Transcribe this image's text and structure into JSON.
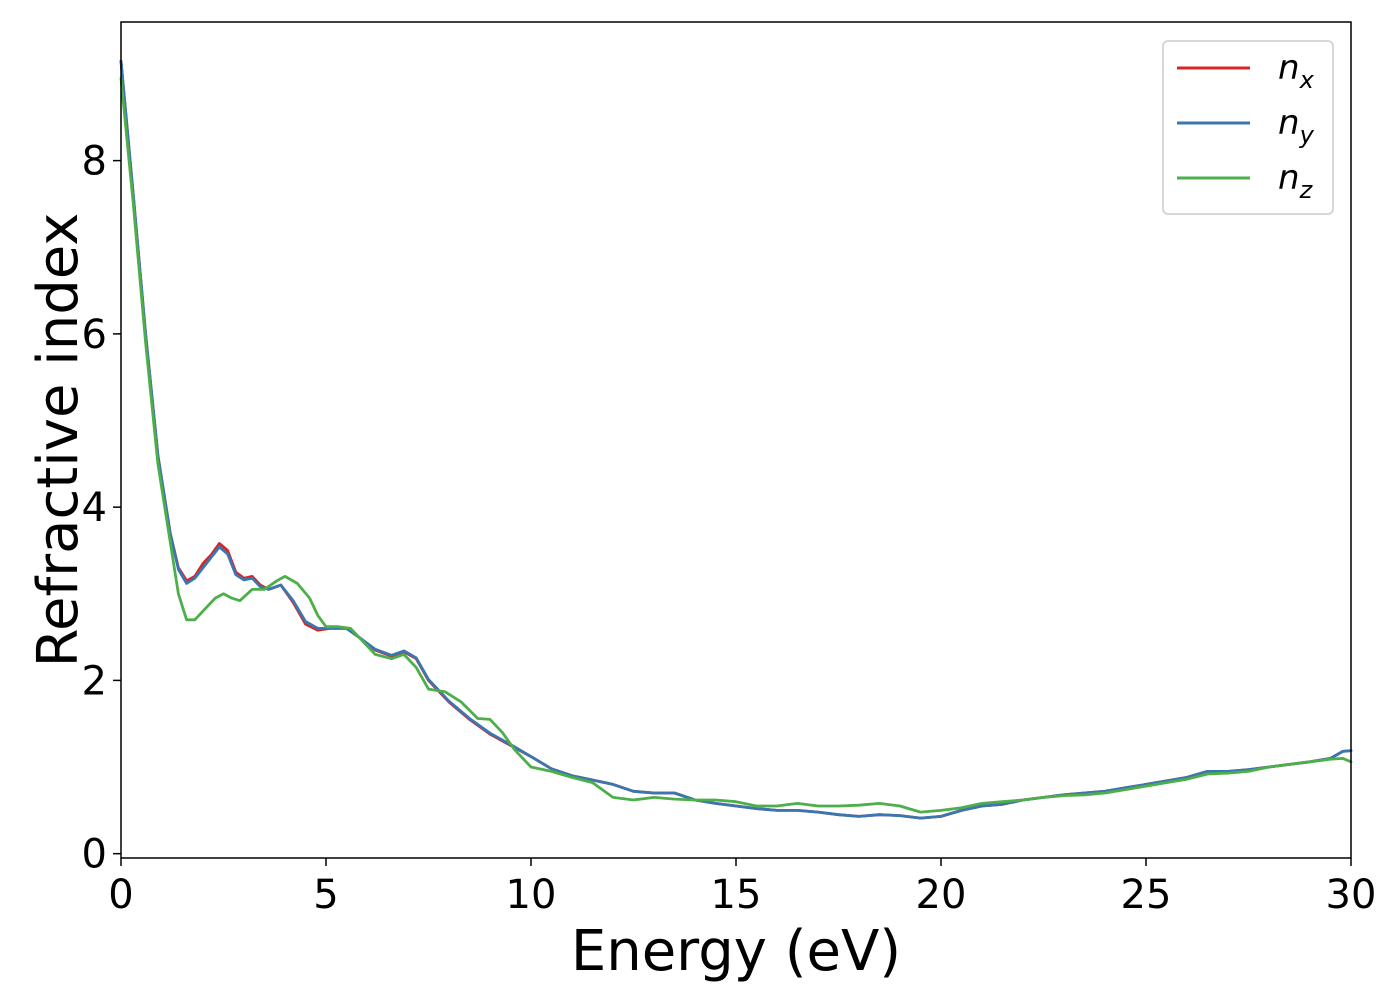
{
  "chart_data": {
    "type": "line",
    "title": "",
    "xlabel": "Energy (eV)",
    "ylabel": "Refractive index",
    "xlim": [
      0,
      30
    ],
    "ylim": [
      -0.05,
      9.6
    ],
    "xticks": [
      0,
      5,
      10,
      15,
      20,
      25,
      30
    ],
    "yticks": [
      0,
      2,
      4,
      6,
      8
    ],
    "grid": false,
    "legend_position": "top-right",
    "series": [
      {
        "name": "n_x",
        "label_base": "n",
        "label_sub": "x",
        "color": "#d62728",
        "points": [
          [
            0,
            9.15
          ],
          [
            0.3,
            7.6
          ],
          [
            0.6,
            6.0
          ],
          [
            0.9,
            4.6
          ],
          [
            1.2,
            3.7
          ],
          [
            1.4,
            3.3
          ],
          [
            1.6,
            3.15
          ],
          [
            1.8,
            3.2
          ],
          [
            2.0,
            3.35
          ],
          [
            2.2,
            3.45
          ],
          [
            2.4,
            3.58
          ],
          [
            2.6,
            3.5
          ],
          [
            2.8,
            3.25
          ],
          [
            3.0,
            3.18
          ],
          [
            3.2,
            3.2
          ],
          [
            3.4,
            3.1
          ],
          [
            3.6,
            3.05
          ],
          [
            3.9,
            3.1
          ],
          [
            4.2,
            2.9
          ],
          [
            4.5,
            2.65
          ],
          [
            4.8,
            2.58
          ],
          [
            5.1,
            2.6
          ],
          [
            5.5,
            2.6
          ],
          [
            5.8,
            2.5
          ],
          [
            6.2,
            2.35
          ],
          [
            6.6,
            2.28
          ],
          [
            6.9,
            2.33
          ],
          [
            7.2,
            2.25
          ],
          [
            7.5,
            2.0
          ],
          [
            8.0,
            1.75
          ],
          [
            8.5,
            1.55
          ],
          [
            9.0,
            1.38
          ],
          [
            9.5,
            1.25
          ],
          [
            10.0,
            1.12
          ],
          [
            10.5,
            0.98
          ],
          [
            11.0,
            0.9
          ],
          [
            11.5,
            0.85
          ],
          [
            12.0,
            0.8
          ],
          [
            12.5,
            0.72
          ],
          [
            13.0,
            0.7
          ],
          [
            13.5,
            0.7
          ],
          [
            14.0,
            0.62
          ],
          [
            14.5,
            0.58
          ],
          [
            15.0,
            0.55
          ],
          [
            15.5,
            0.52
          ],
          [
            16.0,
            0.5
          ],
          [
            16.5,
            0.5
          ],
          [
            17.0,
            0.48
          ],
          [
            17.5,
            0.45
          ],
          [
            18.0,
            0.43
          ],
          [
            18.5,
            0.45
          ],
          [
            19.0,
            0.44
          ],
          [
            19.5,
            0.41
          ],
          [
            20.0,
            0.43
          ],
          [
            20.5,
            0.5
          ],
          [
            21.0,
            0.55
          ],
          [
            21.5,
            0.57
          ],
          [
            22.0,
            0.62
          ],
          [
            22.5,
            0.65
          ],
          [
            23.0,
            0.68
          ],
          [
            23.5,
            0.7
          ],
          [
            24.0,
            0.72
          ],
          [
            24.5,
            0.76
          ],
          [
            25.0,
            0.8
          ],
          [
            25.5,
            0.84
          ],
          [
            26.0,
            0.88
          ],
          [
            26.5,
            0.95
          ],
          [
            27.0,
            0.95
          ],
          [
            27.5,
            0.97
          ],
          [
            28.0,
            1.0
          ],
          [
            28.5,
            1.03
          ],
          [
            29.0,
            1.06
          ],
          [
            29.5,
            1.1
          ],
          [
            29.8,
            1.18
          ],
          [
            30.0,
            1.19
          ]
        ]
      },
      {
        "name": "n_y",
        "label_base": "n",
        "label_sub": "y",
        "color": "#3a77b0",
        "points": [
          [
            0,
            9.15
          ],
          [
            0.3,
            7.6
          ],
          [
            0.6,
            6.0
          ],
          [
            0.9,
            4.6
          ],
          [
            1.2,
            3.7
          ],
          [
            1.4,
            3.28
          ],
          [
            1.6,
            3.12
          ],
          [
            1.8,
            3.18
          ],
          [
            2.0,
            3.3
          ],
          [
            2.2,
            3.42
          ],
          [
            2.4,
            3.54
          ],
          [
            2.6,
            3.46
          ],
          [
            2.8,
            3.22
          ],
          [
            3.0,
            3.16
          ],
          [
            3.2,
            3.18
          ],
          [
            3.4,
            3.08
          ],
          [
            3.6,
            3.05
          ],
          [
            3.9,
            3.1
          ],
          [
            4.2,
            2.92
          ],
          [
            4.5,
            2.68
          ],
          [
            4.8,
            2.6
          ],
          [
            5.1,
            2.6
          ],
          [
            5.5,
            2.6
          ],
          [
            5.8,
            2.5
          ],
          [
            6.2,
            2.36
          ],
          [
            6.6,
            2.29
          ],
          [
            6.9,
            2.34
          ],
          [
            7.2,
            2.26
          ],
          [
            7.5,
            2.01
          ],
          [
            8.0,
            1.76
          ],
          [
            8.5,
            1.56
          ],
          [
            9.0,
            1.39
          ],
          [
            9.5,
            1.26
          ],
          [
            10.0,
            1.12
          ],
          [
            10.5,
            0.98
          ],
          [
            11.0,
            0.9
          ],
          [
            11.5,
            0.85
          ],
          [
            12.0,
            0.8
          ],
          [
            12.5,
            0.72
          ],
          [
            13.0,
            0.7
          ],
          [
            13.5,
            0.7
          ],
          [
            14.0,
            0.62
          ],
          [
            14.5,
            0.58
          ],
          [
            15.0,
            0.55
          ],
          [
            15.5,
            0.52
          ],
          [
            16.0,
            0.5
          ],
          [
            16.5,
            0.5
          ],
          [
            17.0,
            0.48
          ],
          [
            17.5,
            0.45
          ],
          [
            18.0,
            0.43
          ],
          [
            18.5,
            0.45
          ],
          [
            19.0,
            0.44
          ],
          [
            19.5,
            0.41
          ],
          [
            20.0,
            0.43
          ],
          [
            20.5,
            0.5
          ],
          [
            21.0,
            0.55
          ],
          [
            21.5,
            0.57
          ],
          [
            22.0,
            0.62
          ],
          [
            22.5,
            0.65
          ],
          [
            23.0,
            0.68
          ],
          [
            23.5,
            0.7
          ],
          [
            24.0,
            0.72
          ],
          [
            24.5,
            0.76
          ],
          [
            25.0,
            0.8
          ],
          [
            25.5,
            0.84
          ],
          [
            26.0,
            0.88
          ],
          [
            26.5,
            0.95
          ],
          [
            27.0,
            0.95
          ],
          [
            27.5,
            0.97
          ],
          [
            28.0,
            1.0
          ],
          [
            28.5,
            1.03
          ],
          [
            29.0,
            1.06
          ],
          [
            29.5,
            1.1
          ],
          [
            29.8,
            1.18
          ],
          [
            30.0,
            1.19
          ]
        ]
      },
      {
        "name": "n_z",
        "label_base": "n",
        "label_sub": "z",
        "color": "#4daf4a",
        "points": [
          [
            0,
            8.95
          ],
          [
            0.3,
            7.5
          ],
          [
            0.6,
            5.9
          ],
          [
            0.9,
            4.5
          ],
          [
            1.2,
            3.6
          ],
          [
            1.4,
            3.0
          ],
          [
            1.6,
            2.7
          ],
          [
            1.8,
            2.7
          ],
          [
            2.0,
            2.8
          ],
          [
            2.3,
            2.95
          ],
          [
            2.5,
            3.0
          ],
          [
            2.7,
            2.95
          ],
          [
            2.9,
            2.92
          ],
          [
            3.2,
            3.05
          ],
          [
            3.5,
            3.05
          ],
          [
            3.8,
            3.15
          ],
          [
            4.0,
            3.2
          ],
          [
            4.3,
            3.12
          ],
          [
            4.6,
            2.95
          ],
          [
            4.8,
            2.75
          ],
          [
            5.0,
            2.62
          ],
          [
            5.3,
            2.62
          ],
          [
            5.6,
            2.6
          ],
          [
            5.9,
            2.45
          ],
          [
            6.2,
            2.3
          ],
          [
            6.6,
            2.25
          ],
          [
            6.9,
            2.3
          ],
          [
            7.2,
            2.15
          ],
          [
            7.5,
            1.9
          ],
          [
            7.9,
            1.87
          ],
          [
            8.3,
            1.75
          ],
          [
            8.7,
            1.56
          ],
          [
            9.0,
            1.55
          ],
          [
            9.3,
            1.4
          ],
          [
            9.6,
            1.2
          ],
          [
            10.0,
            1.0
          ],
          [
            10.5,
            0.95
          ],
          [
            11.0,
            0.88
          ],
          [
            11.5,
            0.82
          ],
          [
            12.0,
            0.65
          ],
          [
            12.5,
            0.62
          ],
          [
            13.0,
            0.65
          ],
          [
            13.5,
            0.63
          ],
          [
            14.0,
            0.62
          ],
          [
            14.5,
            0.62
          ],
          [
            15.0,
            0.6
          ],
          [
            15.5,
            0.55
          ],
          [
            16.0,
            0.55
          ],
          [
            16.5,
            0.58
          ],
          [
            17.0,
            0.55
          ],
          [
            17.5,
            0.55
          ],
          [
            18.0,
            0.56
          ],
          [
            18.5,
            0.58
          ],
          [
            19.0,
            0.55
          ],
          [
            19.5,
            0.48
          ],
          [
            20.0,
            0.5
          ],
          [
            20.5,
            0.53
          ],
          [
            21.0,
            0.58
          ],
          [
            21.5,
            0.6
          ],
          [
            22.0,
            0.62
          ],
          [
            22.5,
            0.65
          ],
          [
            23.0,
            0.67
          ],
          [
            23.5,
            0.68
          ],
          [
            24.0,
            0.7
          ],
          [
            24.5,
            0.74
          ],
          [
            25.0,
            0.78
          ],
          [
            25.5,
            0.82
          ],
          [
            26.0,
            0.86
          ],
          [
            26.5,
            0.92
          ],
          [
            27.0,
            0.93
          ],
          [
            27.5,
            0.95
          ],
          [
            28.0,
            1.0
          ],
          [
            28.5,
            1.03
          ],
          [
            29.0,
            1.06
          ],
          [
            29.5,
            1.09
          ],
          [
            29.8,
            1.1
          ],
          [
            30.0,
            1.06
          ]
        ]
      }
    ]
  }
}
